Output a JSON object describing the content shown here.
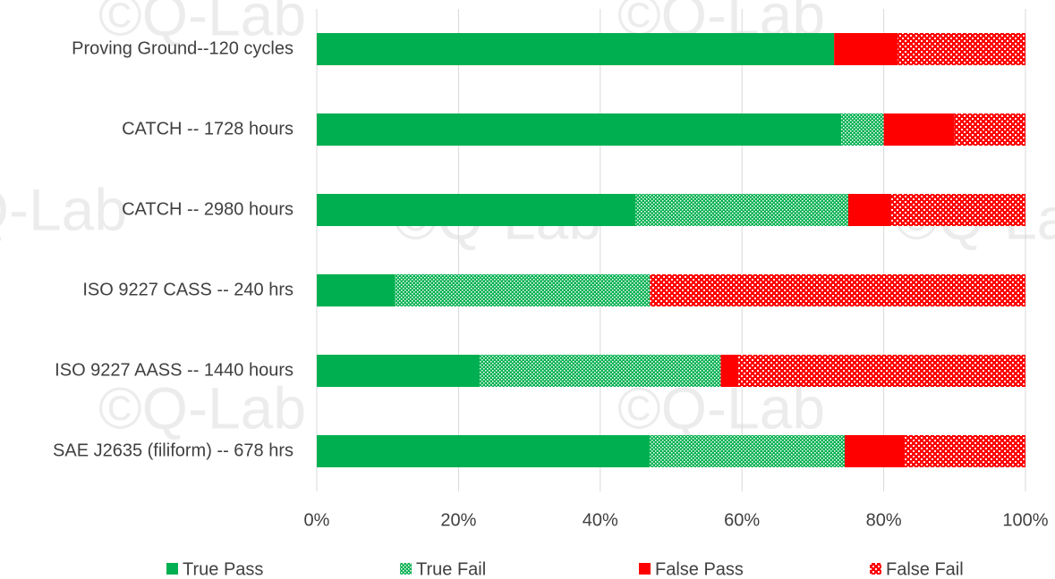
{
  "chart_data": {
    "type": "stacked-barh",
    "watermark": "©Q-Lab",
    "categories": [
      "Proving Ground--120 cycles",
      "CATCH -- 1728 hours",
      "CATCH -- 2980 hours",
      "ISO 9227 CASS -- 240 hrs",
      "ISO 9227 AASS -- 1440 hours",
      "SAE J2635 (filiform) -- 678 hrs"
    ],
    "series": [
      {
        "name": "True Pass",
        "color": "#00b050",
        "pattern": "solid",
        "values": [
          73,
          74,
          45,
          11,
          23,
          47
        ]
      },
      {
        "name": "True Fail",
        "color": "#00b050",
        "pattern": "dots",
        "values": [
          0,
          6,
          30,
          36,
          34,
          27.5
        ]
      },
      {
        "name": "False Pass",
        "color": "#ff0000",
        "pattern": "solid",
        "values": [
          9,
          10,
          6,
          0,
          2.5,
          8.5
        ]
      },
      {
        "name": "False Fail",
        "color": "#ff0000",
        "pattern": "checker",
        "values": [
          18,
          10,
          19,
          53,
          40.5,
          17
        ]
      }
    ],
    "xlim": [
      0,
      100
    ],
    "xticks": [
      {
        "value": 0,
        "label": "0%"
      },
      {
        "value": 20,
        "label": "20%"
      },
      {
        "value": 40,
        "label": "40%"
      },
      {
        "value": 60,
        "label": "60%"
      },
      {
        "value": 80,
        "label": "80%"
      },
      {
        "value": 100,
        "label": "100%"
      }
    ],
    "grid": true,
    "legend": "bottom"
  }
}
